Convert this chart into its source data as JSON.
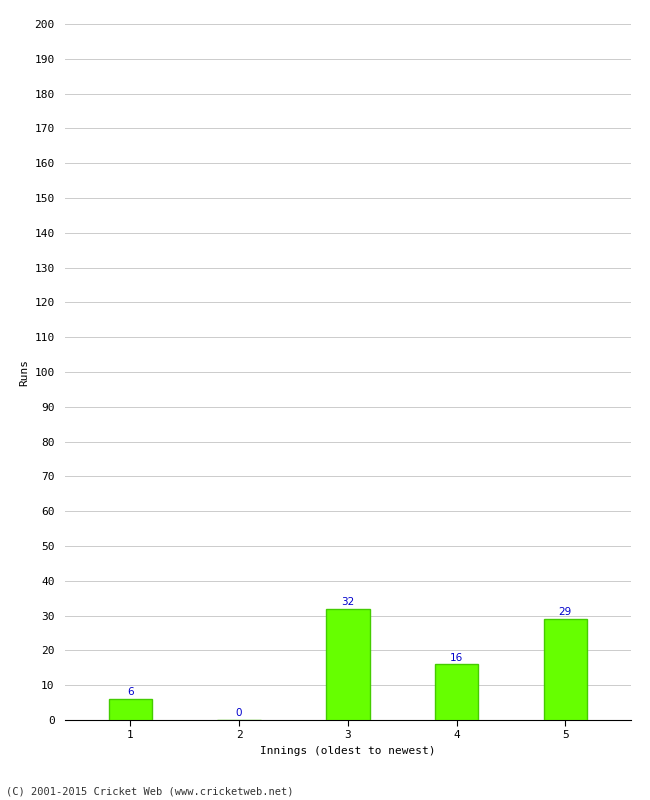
{
  "categories": [
    "1",
    "2",
    "3",
    "4",
    "5"
  ],
  "values": [
    6,
    0,
    32,
    16,
    29
  ],
  "bar_color": "#66ff00",
  "bar_edge_color": "#44cc00",
  "ylabel": "Runs",
  "xlabel": "Innings (oldest to newest)",
  "ylim": [
    0,
    200
  ],
  "yticks": [
    0,
    10,
    20,
    30,
    40,
    50,
    60,
    70,
    80,
    90,
    100,
    110,
    120,
    130,
    140,
    150,
    160,
    170,
    180,
    190,
    200
  ],
  "label_color": "#0000cc",
  "label_fontsize": 7.5,
  "axis_fontsize": 8,
  "tick_fontsize": 8,
  "footer_text": "(C) 2001-2015 Cricket Web (www.cricketweb.net)",
  "footer_fontsize": 7.5,
  "background_color": "#ffffff",
  "grid_color": "#cccccc",
  "bar_width": 0.4
}
